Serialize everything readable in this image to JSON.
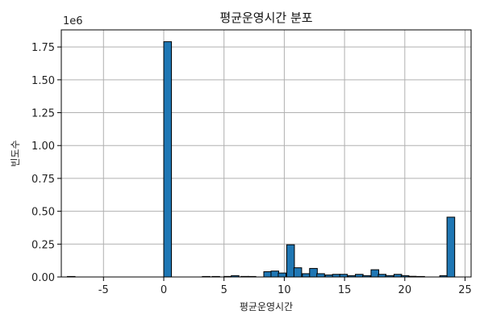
{
  "chart_data": {
    "type": "bar",
    "title": "평균운영시간 분포",
    "xlabel": "평균운영시간",
    "ylabel": "빈도수",
    "y_multiplier_label": "1e6",
    "xlim": [
      -8.5,
      25.5
    ],
    "ylim": [
      0,
      1.88
    ],
    "grid": true,
    "x_ticks": [
      -5,
      0,
      5,
      10,
      15,
      20,
      25
    ],
    "y_ticks": [
      0.0,
      0.25,
      0.5,
      0.75,
      1.0,
      1.25,
      1.5,
      1.75
    ],
    "y_tick_labels": [
      "0.00",
      "0.25",
      "0.50",
      "0.75",
      "1.00",
      "1.25",
      "1.50",
      "1.75"
    ],
    "bin_width": 0.64,
    "bins": [
      {
        "x": -8.0,
        "value": 0.0
      },
      {
        "x": 0.0,
        "value": 1.79
      },
      {
        "x": 3.2,
        "value": 0.002
      },
      {
        "x": 4.0,
        "value": 0.003
      },
      {
        "x": 5.0,
        "value": 0.004
      },
      {
        "x": 5.6,
        "value": 0.01
      },
      {
        "x": 6.4,
        "value": 0.004
      },
      {
        "x": 7.0,
        "value": 0.003
      },
      {
        "x": 8.3,
        "value": 0.04
      },
      {
        "x": 8.9,
        "value": 0.045
      },
      {
        "x": 9.5,
        "value": 0.03
      },
      {
        "x": 10.2,
        "value": 0.245
      },
      {
        "x": 10.8,
        "value": 0.07
      },
      {
        "x": 11.5,
        "value": 0.025
      },
      {
        "x": 12.1,
        "value": 0.065
      },
      {
        "x": 12.7,
        "value": 0.025
      },
      {
        "x": 13.4,
        "value": 0.015
      },
      {
        "x": 14.0,
        "value": 0.02
      },
      {
        "x": 14.6,
        "value": 0.02
      },
      {
        "x": 15.3,
        "value": 0.01
      },
      {
        "x": 15.9,
        "value": 0.02
      },
      {
        "x": 16.5,
        "value": 0.01
      },
      {
        "x": 17.2,
        "value": 0.055
      },
      {
        "x": 17.8,
        "value": 0.02
      },
      {
        "x": 18.4,
        "value": 0.01
      },
      {
        "x": 19.1,
        "value": 0.02
      },
      {
        "x": 19.7,
        "value": 0.01
      },
      {
        "x": 20.3,
        "value": 0.005
      },
      {
        "x": 21.0,
        "value": 0.003
      },
      {
        "x": 22.9,
        "value": 0.01
      },
      {
        "x": 23.5,
        "value": 0.455
      }
    ],
    "bar_color": "#1f77b4",
    "edge_color": "#000000"
  }
}
